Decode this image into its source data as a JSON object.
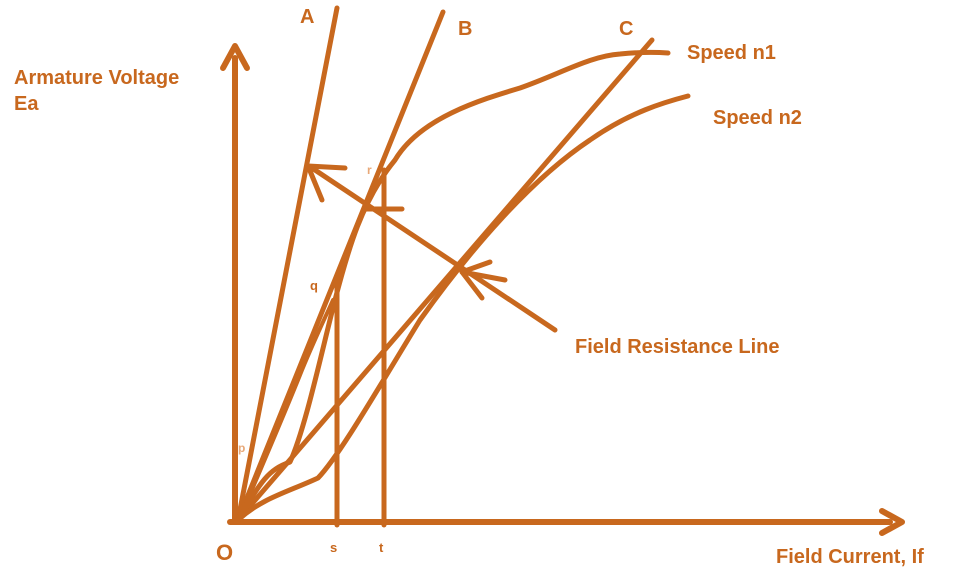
{
  "colors": {
    "ink": "#c8681e",
    "faint": "#e8a878",
    "background": "#ffffff"
  },
  "axes": {
    "y_label_line1": "Armature Voltage",
    "y_label_line2": "Ea",
    "x_label": "Field Current, If",
    "origin_label": "O"
  },
  "lines": {
    "a_label": "A",
    "b_label": "B",
    "c_label": "C"
  },
  "curves": {
    "n1_label": "Speed n1",
    "n2_label": "Speed n2"
  },
  "annotation": {
    "field_resistance_label": "Field Resistance Line"
  },
  "points": {
    "p": "p",
    "q": "q",
    "r": "r",
    "s": "s",
    "t": "t"
  }
}
